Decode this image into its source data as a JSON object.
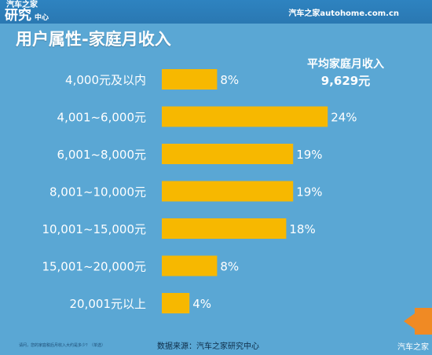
{
  "logo": {
    "line1": "汽车之家",
    "line2": "研究",
    "line3": "中心"
  },
  "site": "汽车之家autohome.com.cn",
  "title": "用户属性-家庭月收入",
  "average": {
    "label": "平均家庭月收入",
    "value": "9,629元"
  },
  "footnote": "请问，您的家庭税后月收入大约是多少？（单选）",
  "source": "数据来源：汽车之家研究中心",
  "corner": "汽车之家",
  "colors": {
    "background": "#5aa7d4",
    "bar": "#f7b800",
    "label": "#ffffff"
  },
  "chart_data": {
    "type": "bar",
    "orientation": "horizontal",
    "categories": [
      "4,000元及以内",
      "4,001~6,000元",
      "6,001~8,000元",
      "8,001~10,000元",
      "10,001~15,000元",
      "15,001~20,000元",
      "20,001元以上"
    ],
    "values": [
      8,
      24,
      19,
      19,
      18,
      8,
      4
    ],
    "value_labels": [
      "8%",
      "24%",
      "19%",
      "19%",
      "18%",
      "8%",
      "4%"
    ],
    "unit": "%"
  }
}
